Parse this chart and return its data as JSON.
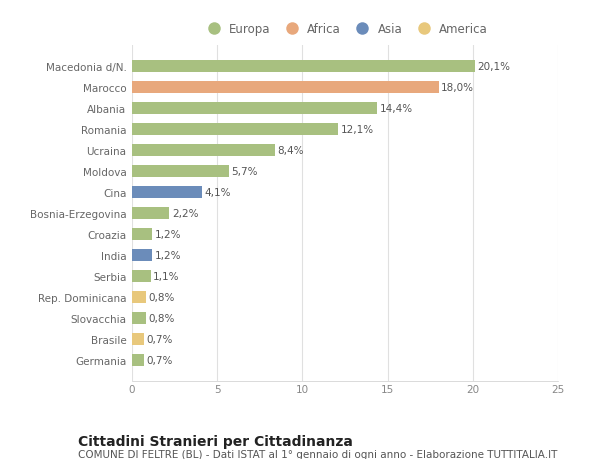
{
  "categories": [
    "Germania",
    "Brasile",
    "Slovacchia",
    "Rep. Dominicana",
    "Serbia",
    "India",
    "Croazia",
    "Bosnia-Erzegovina",
    "Cina",
    "Moldova",
    "Ucraina",
    "Romania",
    "Albania",
    "Marocco",
    "Macedonia d/N."
  ],
  "values": [
    0.7,
    0.7,
    0.8,
    0.8,
    1.1,
    1.2,
    1.2,
    2.2,
    4.1,
    5.7,
    8.4,
    12.1,
    14.4,
    18.0,
    20.1
  ],
  "labels": [
    "0,7%",
    "0,7%",
    "0,8%",
    "0,8%",
    "1,1%",
    "1,2%",
    "1,2%",
    "2,2%",
    "4,1%",
    "5,7%",
    "8,4%",
    "12,1%",
    "14,4%",
    "18,0%",
    "20,1%"
  ],
  "continents": [
    "Europa",
    "America",
    "Europa",
    "America",
    "Europa",
    "Asia",
    "Europa",
    "Europa",
    "Asia",
    "Europa",
    "Europa",
    "Europa",
    "Europa",
    "Africa",
    "Europa"
  ],
  "colors": {
    "Europa": "#a8c080",
    "Africa": "#e8a87c",
    "Asia": "#6b8cba",
    "America": "#e8c87c"
  },
  "legend_order": [
    "Europa",
    "Africa",
    "Asia",
    "America"
  ],
  "title": "Cittadini Stranieri per Cittadinanza",
  "subtitle": "COMUNE DI FELTRE (BL) - Dati ISTAT al 1° gennaio di ogni anno - Elaborazione TUTTITALIA.IT",
  "xlim": [
    0,
    25
  ],
  "xticks": [
    0,
    5,
    10,
    15,
    20,
    25
  ],
  "background_color": "#ffffff",
  "grid_color": "#e0e0e0",
  "bar_height": 0.55,
  "title_fontsize": 10,
  "subtitle_fontsize": 7.5,
  "label_fontsize": 7.5,
  "tick_fontsize": 7.5,
  "legend_fontsize": 8.5
}
